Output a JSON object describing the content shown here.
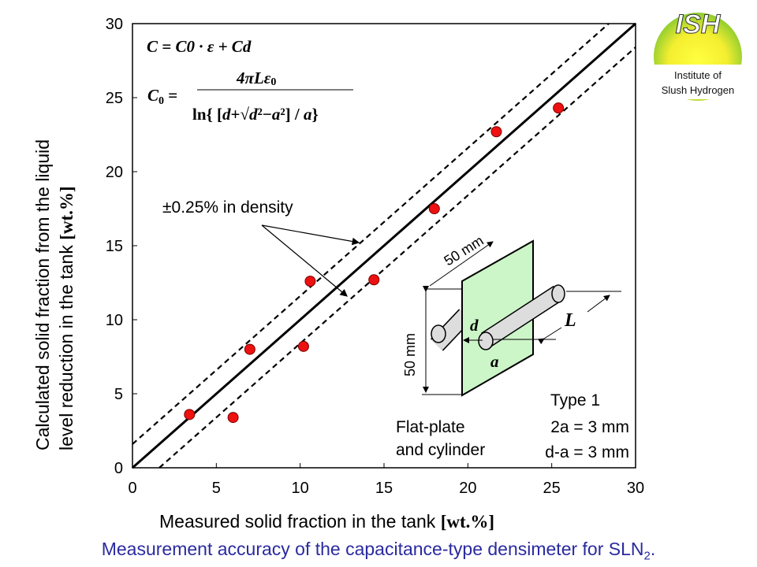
{
  "chart_data": {
    "type": "scatter",
    "title": "Measurement accuracy of the capacitance-type densimeter for SLN",
    "title_subscript": "2",
    "title_suffix": ".",
    "xlabel": "Measured solid fraction in the tank",
    "xlabel_unit": "[wt.%]",
    "ylabel_line1": "Calculated solid fraction from the liquid",
    "ylabel_line2": "level reduction in the tank",
    "ylabel_unit": "[wt.%]",
    "xlim": [
      0,
      30
    ],
    "ylim": [
      0,
      30
    ],
    "xticks": [
      "0",
      "5",
      "10",
      "15",
      "20",
      "25",
      "30"
    ],
    "yticks": [
      "0",
      "5",
      "10",
      "15",
      "20",
      "25",
      "30"
    ],
    "grid": false,
    "points": [
      {
        "x": 3.4,
        "y": 3.6
      },
      {
        "x": 6.0,
        "y": 3.4
      },
      {
        "x": 7.0,
        "y": 8.0
      },
      {
        "x": 10.2,
        "y": 8.2
      },
      {
        "x": 10.6,
        "y": 12.6
      },
      {
        "x": 14.4,
        "y": 12.7
      },
      {
        "x": 18.0,
        "y": 17.5
      },
      {
        "x": 21.7,
        "y": 22.7
      },
      {
        "x": 25.4,
        "y": 24.3
      }
    ],
    "point_color": "#ee1111",
    "reference_line": {
      "slope": 1,
      "intercept": 0
    },
    "band_lines": {
      "offset": 1.6,
      "label": "±0.25% in density"
    },
    "annotations": {
      "formula1": "C = C0 · ε + Cd",
      "formula2": "C0 = 4πLε0 / ln{(d+√(d²−a²))/a}",
      "diagram_dim_width": "50 mm",
      "diagram_dim_height": "50 mm",
      "diagram_label_d": "d",
      "diagram_label_a": "a",
      "diagram_label_L": "L",
      "type_label": "Type 1",
      "spec1": "2a = 3 mm",
      "spec2": "d-a = 3 mm",
      "config_line1": "Flat-plate",
      "config_line2": "and cylinder"
    }
  },
  "logo": {
    "title": "ISH",
    "line1": "Institute of",
    "line2": "Slush Hydrogen"
  }
}
